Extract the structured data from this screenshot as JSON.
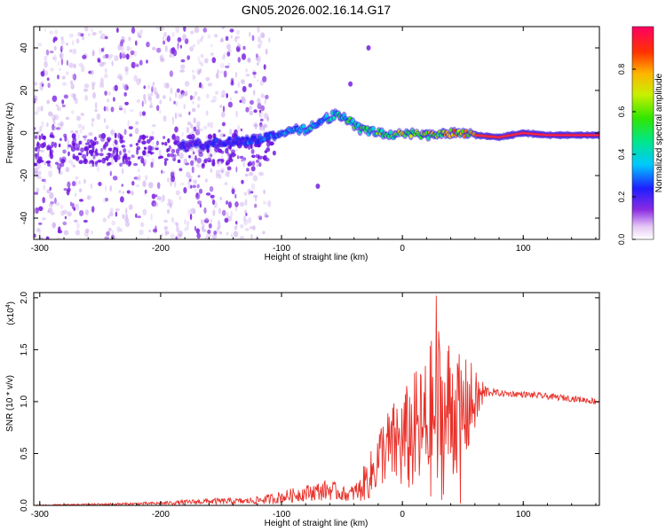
{
  "title": "GN05.2026.002.16.14.G17",
  "chart_data": [
    {
      "type": "heatmap",
      "xlabel": "Height of straight line (km)",
      "ylabel": "Frequency (Hz)",
      "xlim": [
        -305,
        163
      ],
      "ylim": [
        -50,
        50
      ],
      "xticks": [
        -300,
        -200,
        -100,
        0,
        100
      ],
      "xtick_labels": [
        "-300",
        "-200",
        "-100",
        "0",
        "100"
      ],
      "yticks": [
        -40,
        -20,
        0,
        20,
        40
      ],
      "ytick_labels": [
        "-40",
        "-20",
        "0",
        "20",
        "40"
      ],
      "colorbar": {
        "label": "Normalized spectral amplitude",
        "range": [
          0,
          1
        ],
        "ticks": [
          0.0,
          0.2,
          0.4,
          0.6,
          0.8
        ],
        "tick_labels": [
          "0.0",
          "0.2",
          "0.4",
          "0.6",
          "0.8"
        ]
      },
      "ridge": {
        "x": [
          -185,
          -160,
          -140,
          -120,
          -100,
          -80,
          -65,
          -55,
          -45,
          -35,
          -20,
          -10,
          0,
          20,
          40,
          60,
          80,
          100,
          120,
          163
        ],
        "freq": [
          -6,
          -5,
          -4,
          -3,
          0,
          2,
          6,
          9,
          6,
          2,
          0,
          -1,
          0,
          -1,
          0,
          -1,
          -2,
          0,
          -1,
          -1
        ],
        "amplitude": [
          0.2,
          0.25,
          0.25,
          0.3,
          0.35,
          0.4,
          0.45,
          0.5,
          0.5,
          0.55,
          0.6,
          0.65,
          0.7,
          0.75,
          0.8,
          0.85,
          0.9,
          0.95,
          0.95,
          0.95
        ]
      },
      "noise_region_x": [
        -305,
        -110
      ],
      "notable_blobs": [
        {
          "x": -28,
          "freq": 40
        },
        {
          "x": -43,
          "freq": 23
        },
        {
          "x": -70,
          "freq": -25
        }
      ]
    },
    {
      "type": "line",
      "xlabel": "Height of straight line (km)",
      "ylabel": "SNR (10 * v/v)",
      "y_multiplier": "(x10",
      "y_multiplier_exp": "4",
      "y_multiplier_close": ")",
      "xlim": [
        -305,
        163
      ],
      "ylim": [
        0,
        2.05
      ],
      "xticks": [
        -300,
        -200,
        -100,
        0,
        100
      ],
      "xtick_labels": [
        "-300",
        "-200",
        "-100",
        "0",
        "100"
      ],
      "yticks": [
        0.0,
        0.5,
        1.0,
        1.5,
        2.0
      ],
      "ytick_labels": [
        "0.0",
        "0.5",
        "1.0",
        "1.5",
        "2.0"
      ],
      "color": "#e8312a",
      "envelope": {
        "x": [
          -305,
          -250,
          -200,
          -160,
          -130,
          -110,
          -100,
          -80,
          -60,
          -45,
          -35,
          -30,
          -25,
          -20,
          -15,
          -10,
          -5,
          0,
          5,
          10,
          15,
          20,
          25,
          28,
          30,
          35,
          40,
          45,
          50,
          55,
          60,
          65,
          70,
          80,
          100,
          120,
          140,
          163
        ],
        "mean": [
          0.0,
          0.01,
          0.02,
          0.04,
          0.04,
          0.06,
          0.08,
          0.12,
          0.15,
          0.1,
          0.15,
          0.25,
          0.3,
          0.45,
          0.55,
          0.55,
          0.6,
          0.6,
          0.65,
          0.7,
          0.7,
          0.75,
          0.85,
          0.9,
          0.9,
          0.8,
          0.95,
          0.9,
          0.9,
          0.95,
          1.0,
          1.05,
          1.1,
          1.08,
          1.07,
          1.05,
          1.03,
          1.0
        ],
        "amp": [
          0.005,
          0.01,
          0.015,
          0.03,
          0.03,
          0.05,
          0.06,
          0.08,
          0.1,
          0.06,
          0.12,
          0.2,
          0.25,
          0.3,
          0.35,
          0.4,
          0.45,
          0.5,
          0.55,
          0.6,
          0.65,
          0.7,
          0.8,
          1.1,
          0.9,
          0.7,
          0.8,
          0.6,
          0.5,
          0.5,
          0.3,
          0.2,
          0.05,
          0.03,
          0.03,
          0.03,
          0.03,
          0.03
        ]
      },
      "peaks": [
        {
          "x": 28,
          "y": 2.02
        },
        {
          "x": 48,
          "y": 0.02
        }
      ]
    }
  ]
}
